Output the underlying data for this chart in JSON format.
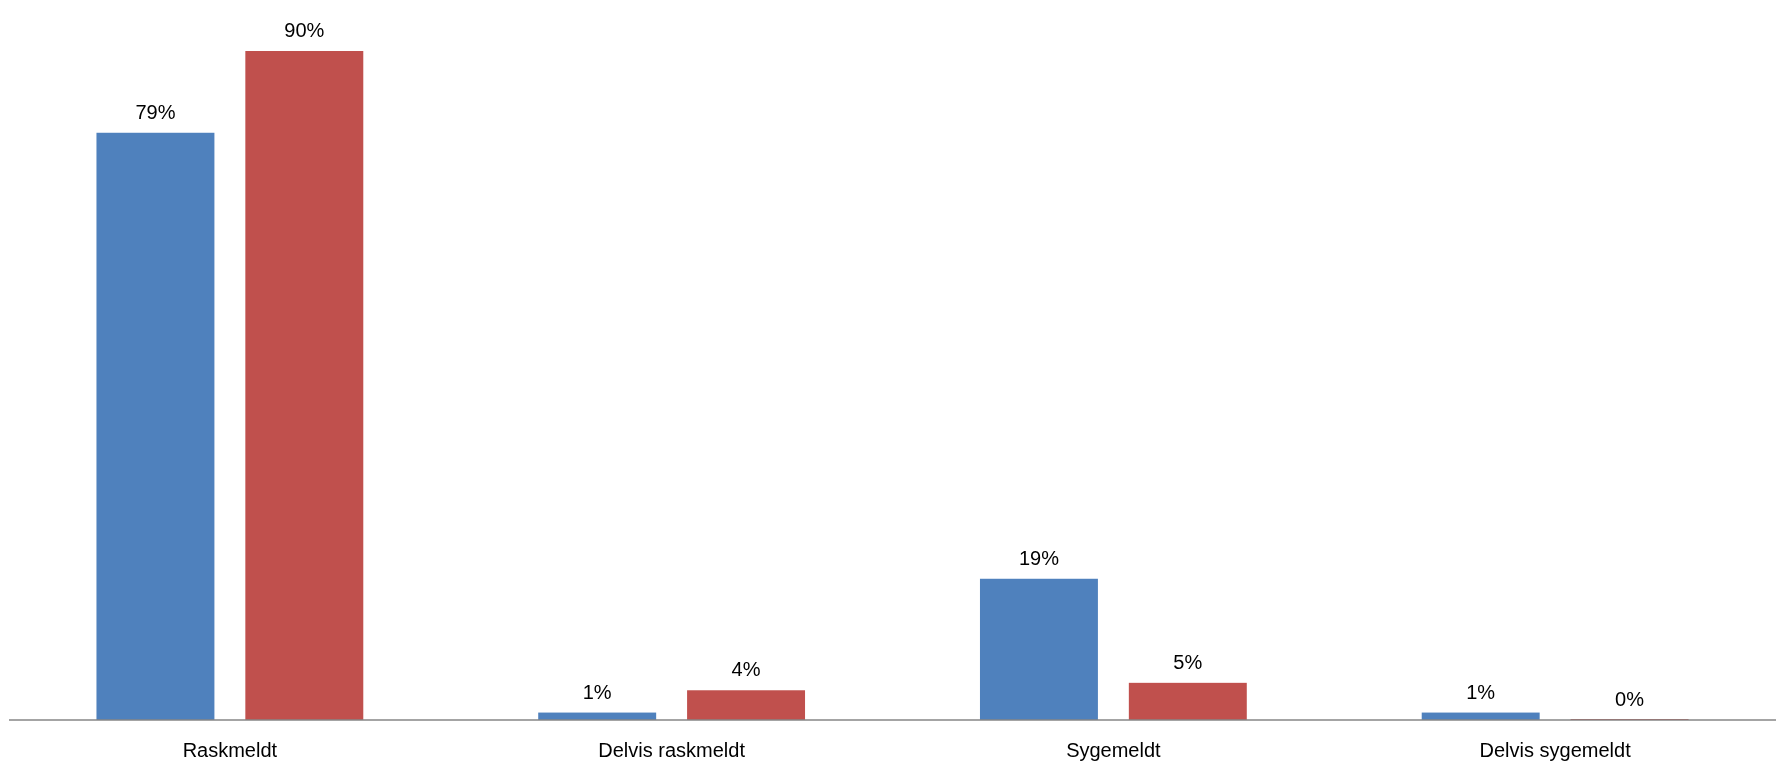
{
  "chart_data": {
    "type": "bar",
    "categories": [
      "Raskmeldt",
      "Delvis raskmeldt",
      "Sygemeldt",
      "Delvis sygemeldt"
    ],
    "series": [
      {
        "color": "#4f81bd",
        "values": [
          79,
          1,
          19,
          1
        ],
        "value_labels": [
          "79%",
          "1%",
          "19%",
          "1%"
        ]
      },
      {
        "color": "#c0504d",
        "values": [
          90,
          4,
          5,
          0
        ],
        "value_labels": [
          "90%",
          "4%",
          "5%",
          "0%"
        ]
      }
    ]
  }
}
